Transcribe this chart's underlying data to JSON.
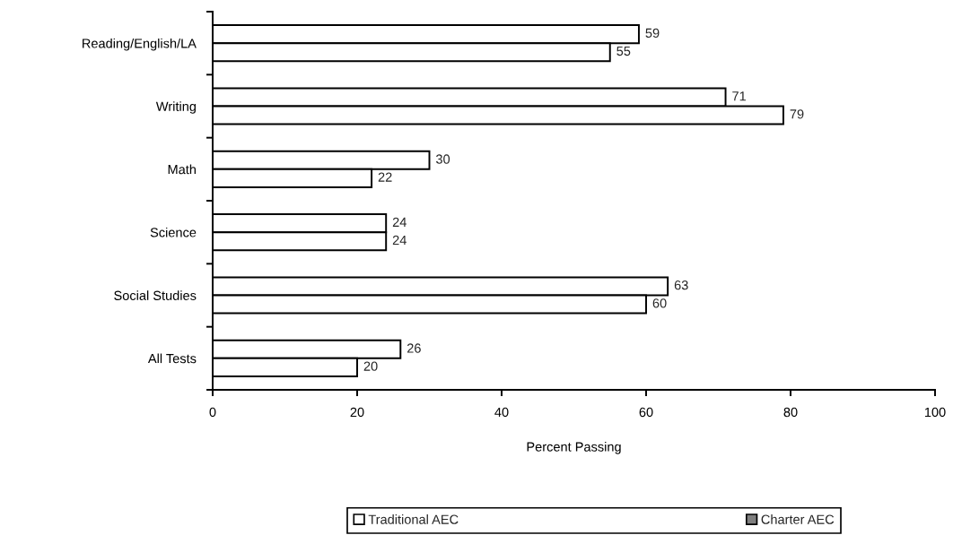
{
  "chart_data": {
    "type": "bar",
    "orientation": "horizontal",
    "xlabel": "Percent Passing",
    "categories": [
      "Reading/English/LA",
      "Writing",
      "Math",
      "Science",
      "Social Studies",
      "All Tests"
    ],
    "series": [
      {
        "name": "Traditional AEC",
        "color": "#ffffff",
        "values": [
          59,
          71,
          30,
          24,
          63,
          26
        ]
      },
      {
        "name": "Charter AEC",
        "color": "#808080",
        "colors": [
          "#ffffff",
          "#ffffff",
          "#ffffff",
          "#ffffff",
          "#ffffff",
          "#ffffff"
        ],
        "values": [
          55,
          79,
          22,
          24,
          60,
          20
        ]
      }
    ],
    "xlim": [
      0,
      100
    ],
    "xticks": [
      0,
      20,
      40,
      60,
      80,
      100
    ],
    "data_labels": true,
    "legend": "bottom"
  }
}
